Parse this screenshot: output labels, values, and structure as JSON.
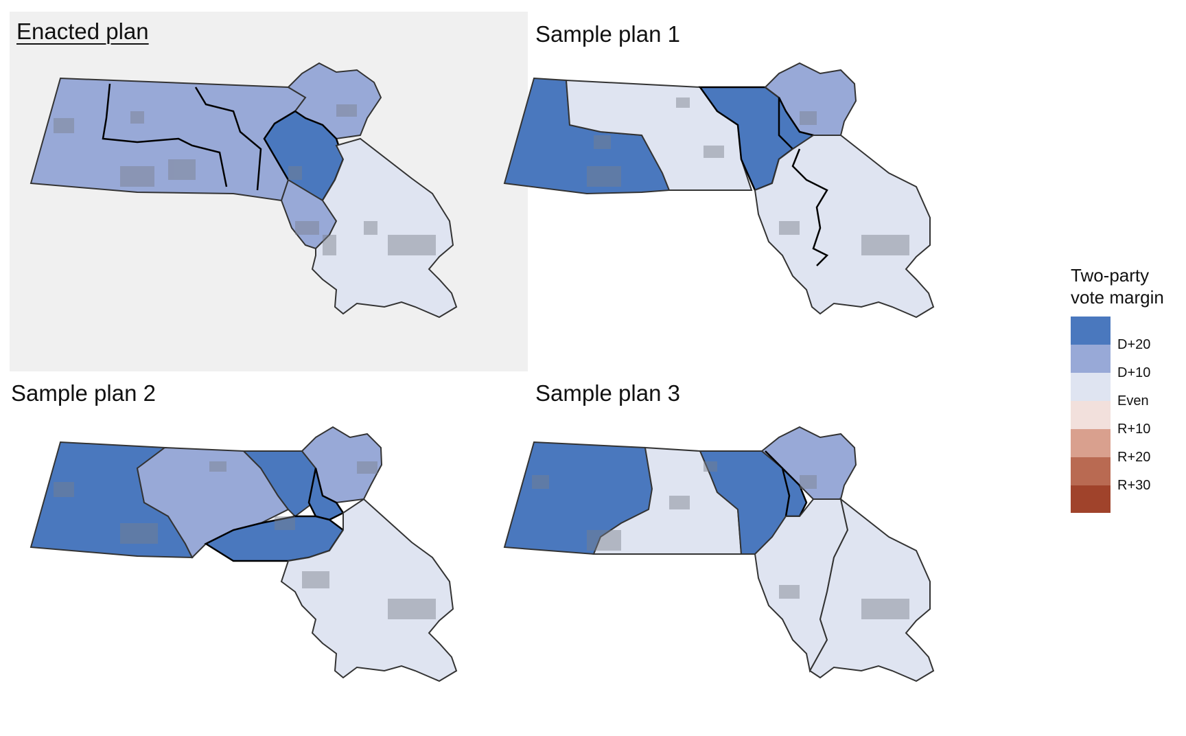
{
  "panels": [
    {
      "title": "Enacted plan",
      "highlighted": true
    },
    {
      "title": "Sample plan 1",
      "highlighted": false
    },
    {
      "title": "Sample plan 2",
      "highlighted": false
    },
    {
      "title": "Sample plan 3",
      "highlighted": false
    }
  ],
  "legend": {
    "title_line1": "Two-party",
    "title_line2": "vote margin",
    "labels": [
      "D+20",
      "D+10",
      "Even",
      "R+10",
      "R+20",
      "R+30"
    ],
    "colors": {
      "d_strong": "#4a78be",
      "d_mid": "#98a9d7",
      "d_light": "#dfe4f1",
      "r_light": "#f2e0dc",
      "r_mid": "#d9a08e",
      "r_strong": "#b96a52",
      "r_max": "#a0432b"
    }
  },
  "colors": {
    "enacted_background": "#f0f0f0",
    "city_overlay": "#7a7f8a",
    "border": "#333333",
    "highlight_border": "#000000"
  }
}
